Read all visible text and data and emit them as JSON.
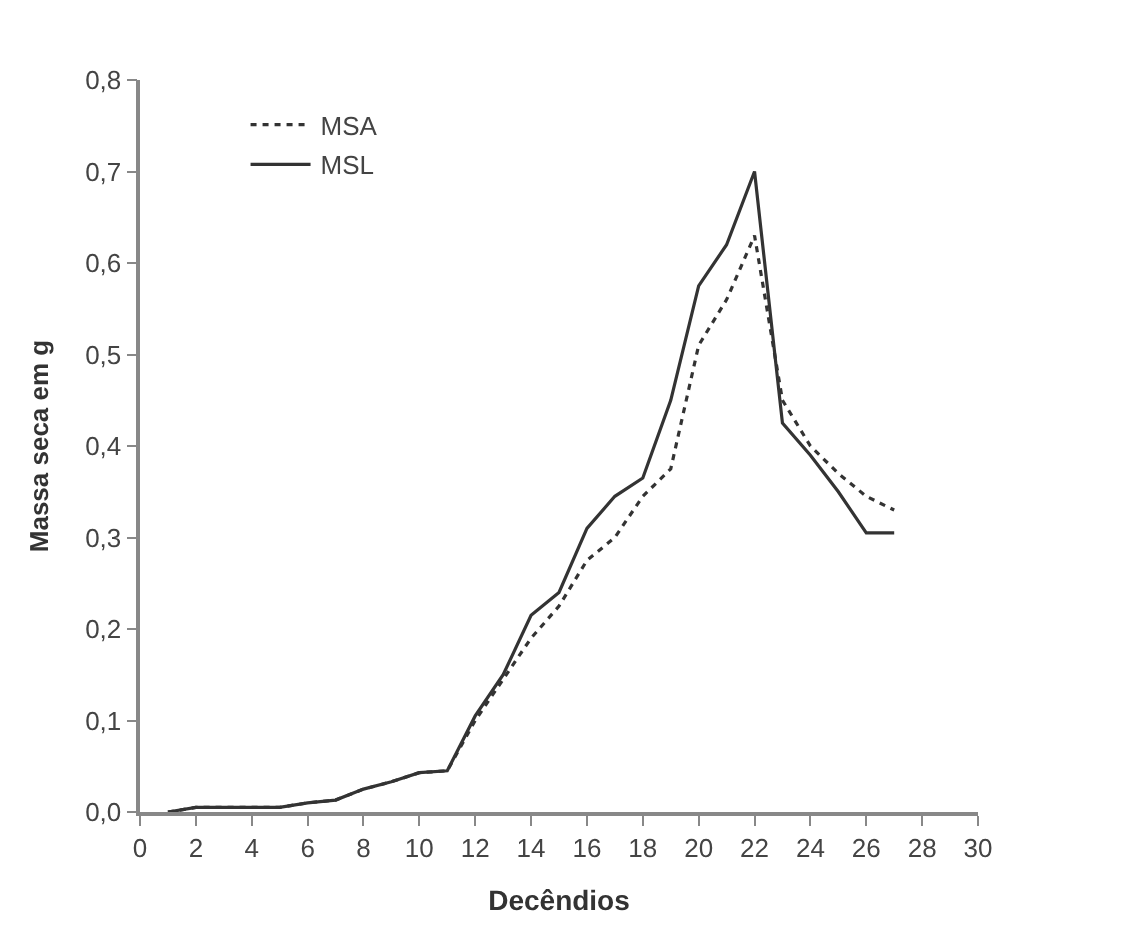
{
  "chart_data": {
    "type": "line",
    "xlabel": "Decêndios",
    "ylabel": "Massa seca em g",
    "x": [
      1,
      2,
      3,
      4,
      5,
      6,
      7,
      8,
      9,
      10,
      11,
      12,
      13,
      14,
      15,
      16,
      17,
      18,
      19,
      20,
      21,
      22,
      23,
      24,
      25,
      26,
      27
    ],
    "series": [
      {
        "name": "MSA",
        "color": "#333333",
        "line_style": "dotted",
        "values": [
          0,
          0.005,
          0.005,
          0.005,
          0.005,
          0.01,
          0.013,
          0.025,
          0.033,
          0.043,
          0.045,
          0.1,
          0.145,
          0.19,
          0.225,
          0.275,
          0.3,
          0.345,
          0.375,
          0.51,
          0.56,
          0.63,
          0.45,
          0.4,
          0.37,
          0.345,
          0.33
        ]
      },
      {
        "name": "MSL",
        "color": "#333333",
        "line_style": "solid",
        "values": [
          0,
          0.005,
          0.005,
          0.005,
          0.005,
          0.01,
          0.013,
          0.025,
          0.033,
          0.043,
          0.045,
          0.105,
          0.15,
          0.215,
          0.24,
          0.31,
          0.345,
          0.365,
          0.45,
          0.575,
          0.62,
          0.7,
          0.425,
          0.39,
          0.35,
          0.305,
          0.305
        ]
      }
    ],
    "xlim": [
      0,
      30
    ],
    "xticks": [
      0,
      2,
      4,
      6,
      8,
      10,
      12,
      14,
      16,
      18,
      20,
      22,
      24,
      26,
      28,
      30
    ],
    "ylim": [
      0,
      0.8
    ],
    "yticks": [
      {
        "value": 0,
        "label": "0,0"
      },
      {
        "value": 0.1,
        "label": "0,1"
      },
      {
        "value": 0.2,
        "label": "0,2"
      },
      {
        "value": 0.3,
        "label": "0,3"
      },
      {
        "value": 0.4,
        "label": "0,4"
      },
      {
        "value": 0.5,
        "label": "0,5"
      },
      {
        "value": 0.6,
        "label": "0,6"
      },
      {
        "value": 0.7,
        "label": "0,7"
      },
      {
        "value": 0.8,
        "label": "0,8"
      }
    ],
    "legend": "top left",
    "marker": "none"
  }
}
